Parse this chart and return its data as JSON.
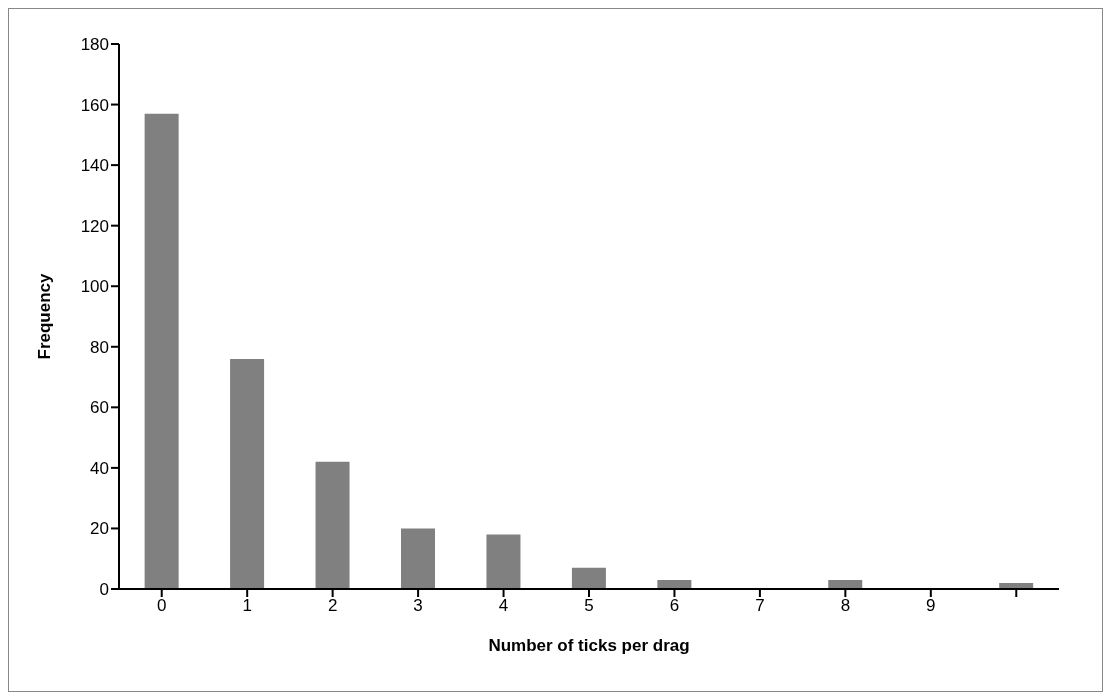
{
  "chart_data": {
    "type": "bar",
    "xlabel": "Number of ticks per drag",
    "ylabel": "Frequency",
    "categories": [
      "0",
      "1",
      "2",
      "3",
      "4",
      "5",
      "6",
      "7",
      "8",
      "9",
      null
    ],
    "values": [
      157,
      76,
      42,
      20,
      18,
      7,
      3,
      0,
      3,
      0,
      2
    ],
    "color": "#808080",
    "ylim": [
      0,
      180
    ],
    "yticks": [
      0,
      20,
      40,
      60,
      80,
      100,
      120,
      140,
      160,
      180
    ],
    "grid": false,
    "legend": false
  }
}
